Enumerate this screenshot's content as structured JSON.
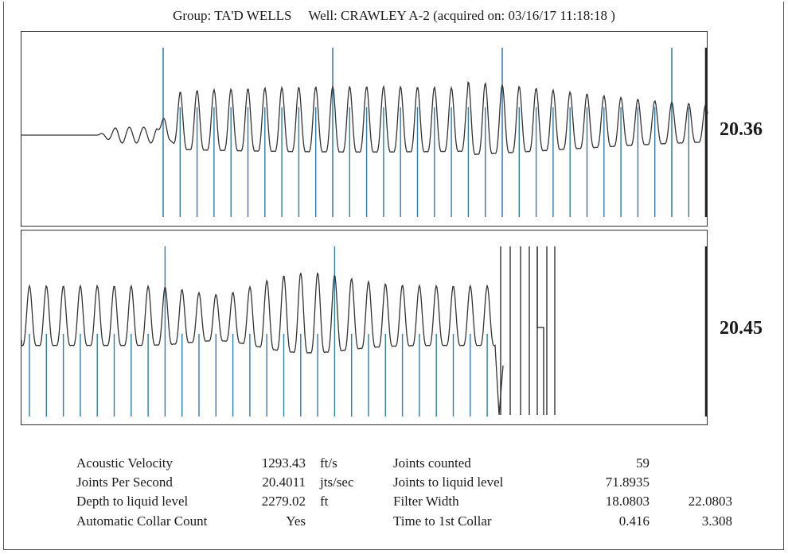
{
  "header": {
    "group_label": "Group:",
    "group": "TA'D WELLS",
    "well_label": "Well:",
    "well": "CRAWLEY A-2",
    "acquired": "(acquired on: 03/16/17 11:18:18 )"
  },
  "chart_data": [
    {
      "type": "line",
      "panel": "top",
      "joint_rate": "20.36",
      "trace_color": "#333333",
      "marker_color": "#2a7fb0",
      "tall_marker_color": "#1f6fa8"
    },
    {
      "type": "line",
      "panel": "bottom",
      "joint_rate": "20.45",
      "trace_color": "#333333",
      "marker_color": "#2a7fb0"
    }
  ],
  "stats": {
    "left": [
      {
        "label": "Acoustic Velocity",
        "value": "1293.43",
        "unit": "ft/s"
      },
      {
        "label": "Joints Per Second",
        "value": "20.4011",
        "unit": "jts/sec"
      },
      {
        "label": "Depth to liquid level",
        "value": "2279.02",
        "unit": "ft"
      },
      {
        "label": "Automatic Collar Count",
        "value": "Yes",
        "unit": ""
      }
    ],
    "right": [
      {
        "label": "Joints counted",
        "value": "59",
        "value2": ""
      },
      {
        "label": "Joints to liquid level",
        "value": "71.8935",
        "value2": ""
      },
      {
        "label": "Filter Width",
        "value": "18.0803",
        "value2": "22.0803"
      },
      {
        "label": "Time to 1st Collar",
        "value": "0.416",
        "value2": "3.308"
      }
    ]
  }
}
